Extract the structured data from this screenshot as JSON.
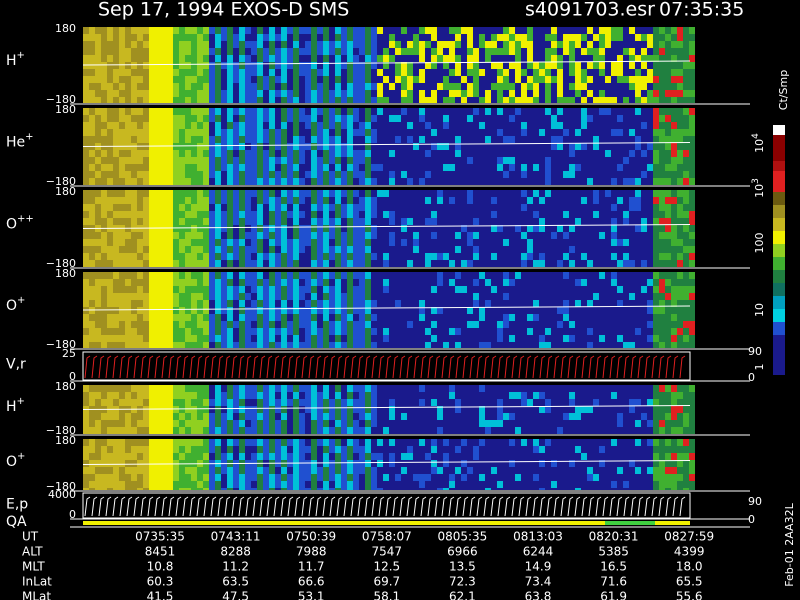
{
  "header": {
    "title": "Sep 17, 1994   EXOS-D SMS",
    "file": "s4091703.esr",
    "time": "07:35:35"
  },
  "panels": [
    {
      "label": "H",
      "sup": "+",
      "top": "180",
      "bottom": "−180"
    },
    {
      "label": "He",
      "sup": "+",
      "top": "180",
      "bottom": "−180"
    },
    {
      "label": "O",
      "sup": "++",
      "top": "180",
      "bottom": "−180"
    },
    {
      "label": "O",
      "sup": "+",
      "top": "180",
      "bottom": "−180"
    },
    {
      "label": "V,r",
      "top": "25",
      "bottom": "0",
      "right_top": "90",
      "right_bottom": "0"
    },
    {
      "label": "H",
      "sup": "+",
      "top": "180",
      "bottom": "−180"
    },
    {
      "label": "O",
      "sup": "+",
      "top": "180",
      "bottom": "−180"
    },
    {
      "label": "E,p",
      "top": "4000",
      "bottom": "0",
      "right_top": "90",
      "right_bottom": "0"
    },
    {
      "label": "QA"
    }
  ],
  "colorbar": {
    "unit": "Ct/Smp",
    "labels": [
      {
        "base": "10",
        "sup": "4"
      },
      {
        "base": "10",
        "sup": "3"
      },
      {
        "base": "100"
      },
      {
        "base": "10"
      },
      {
        "base": "1"
      }
    ]
  },
  "table": {
    "row_labels": [
      "UT",
      "ALT",
      "MLT",
      "InLat",
      "MLat"
    ],
    "rows": [
      [
        "0735:35",
        "0743:11",
        "0750:39",
        "0758:07",
        "0805:35",
        "0813:03",
        "0820:31",
        "0827:59"
      ],
      [
        "8451",
        "8288",
        "7988",
        "7547",
        "6966",
        "6244",
        "5385",
        "4399"
      ],
      [
        "10.8",
        "11.2",
        "11.7",
        "12.5",
        "13.5",
        "14.9",
        "16.5",
        "18.0"
      ],
      [
        "60.3",
        "63.5",
        "66.6",
        "69.7",
        "72.3",
        "73.4",
        "71.6",
        "65.5"
      ],
      [
        "41.5",
        "47.5",
        "53.1",
        "58.1",
        "62.1",
        "63.8",
        "61.9",
        "55.6"
      ]
    ]
  },
  "footer": "Feb-01 2AA32L"
}
